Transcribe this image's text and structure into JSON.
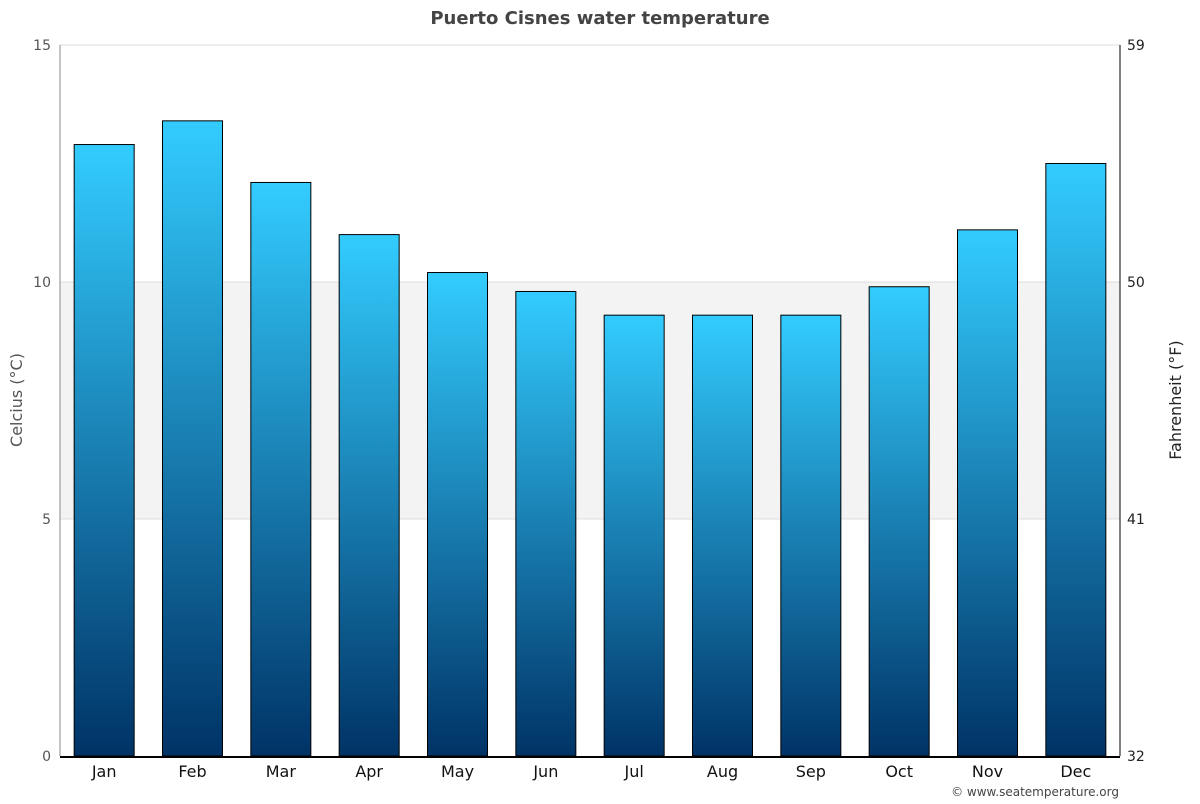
{
  "chart_data": {
    "type": "bar",
    "title": "Puerto Cisnes water temperature",
    "categories": [
      "Jan",
      "Feb",
      "Mar",
      "Apr",
      "May",
      "Jun",
      "Jul",
      "Aug",
      "Sep",
      "Oct",
      "Nov",
      "Dec"
    ],
    "values": [
      12.9,
      13.4,
      12.1,
      11.0,
      10.2,
      9.8,
      9.3,
      9.3,
      9.3,
      9.9,
      11.1,
      12.5
    ],
    "ylabel": "Celcius (°C)",
    "ylabel_right": "Fahrenheit (°F)",
    "ylim": [
      0,
      15
    ],
    "yticks": [
      "0",
      "5",
      "10",
      "15"
    ],
    "yticks_right": [
      "32",
      "41",
      "50",
      "59"
    ],
    "shaded_band": [
      5,
      10
    ],
    "grid": true,
    "colors": {
      "bar_top": "#33ccff",
      "bar_bottom": "#003366",
      "band": "#f3f3f3",
      "title": "#444444"
    }
  },
  "footer": {
    "credit": "© www.seatemperature.org"
  }
}
